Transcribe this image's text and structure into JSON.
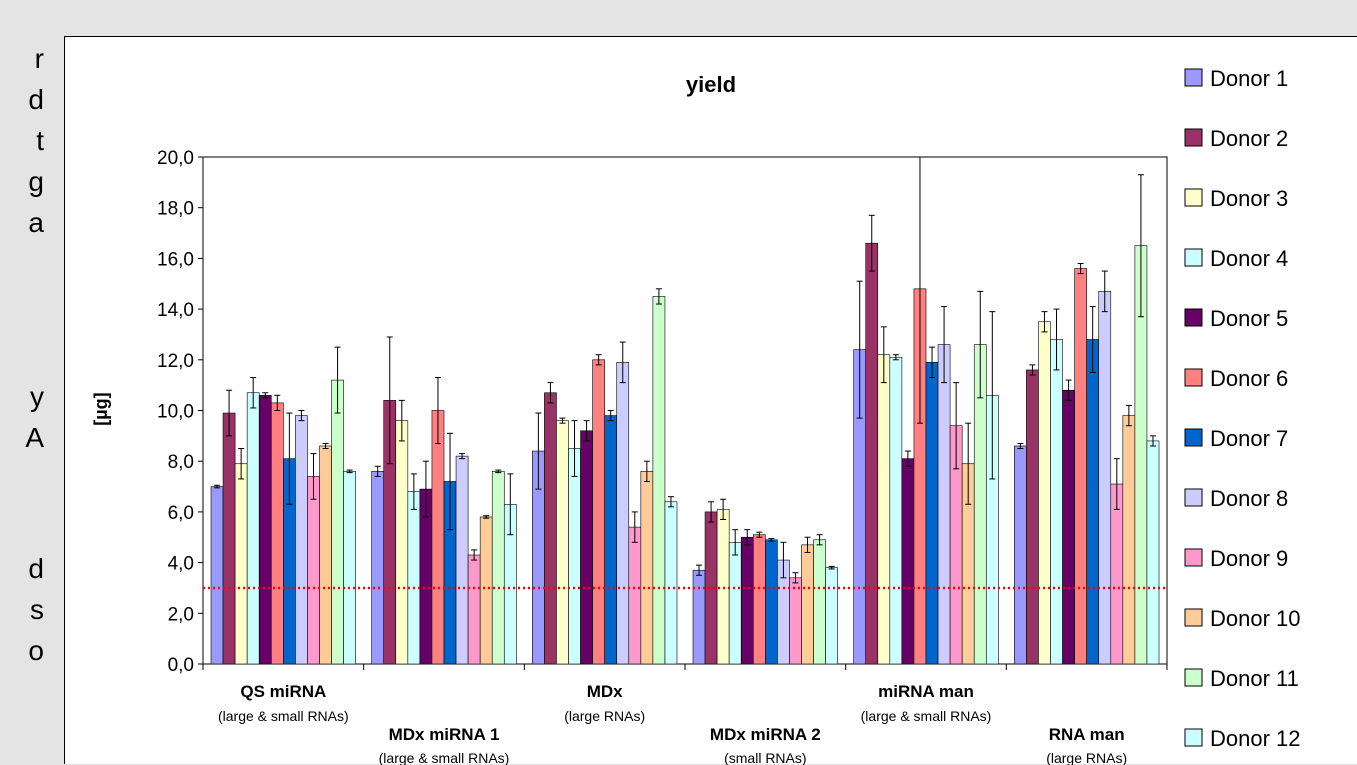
{
  "left_fragments": [
    "r",
    "d",
    "t",
    "g",
    "a",
    "y",
    "A",
    "d",
    "s",
    "o"
  ],
  "chart_data": {
    "type": "bar",
    "title": "yield",
    "xlabel": "",
    "ylabel": "[µg]",
    "ylim": [
      0,
      20
    ],
    "ytick_labels": [
      "0,0",
      "2,0",
      "4,0",
      "6,0",
      "8,0",
      "10,0",
      "12,0",
      "14,0",
      "16,0",
      "18,0",
      "20,0"
    ],
    "reference_line": 3.0,
    "legend_position": "right",
    "groups": [
      {
        "name": "QS miRNA",
        "sub": "(large & small RNAs)"
      },
      {
        "name": "MDx miRNA 1",
        "sub": "(large & small RNAs)"
      },
      {
        "name": "MDx",
        "sub": "(large RNAs)"
      },
      {
        "name": "MDx miRNA 2",
        "sub": "(small RNAs)"
      },
      {
        "name": "miRNA man",
        "sub": "(large & small RNAs)"
      },
      {
        "name": "RNA man",
        "sub": "(large RNAs)"
      }
    ],
    "series": [
      {
        "name": "Donor 1",
        "color": "#9999ff",
        "values": [
          7.0,
          7.6,
          8.4,
          3.7,
          12.4,
          8.6
        ],
        "errors": [
          0.05,
          0.2,
          1.5,
          0.2,
          2.7,
          0.1
        ]
      },
      {
        "name": "Donor 2",
        "color": "#993366",
        "values": [
          9.9,
          10.4,
          10.7,
          6.0,
          16.6,
          11.6
        ],
        "errors": [
          0.9,
          2.5,
          0.4,
          0.4,
          1.1,
          0.2
        ]
      },
      {
        "name": "Donor 3",
        "color": "#ffffcc",
        "values": [
          7.9,
          9.6,
          9.6,
          6.1,
          12.2,
          13.5
        ],
        "errors": [
          0.6,
          0.8,
          0.1,
          0.4,
          1.1,
          0.4
        ]
      },
      {
        "name": "Donor 4",
        "color": "#ccffff",
        "values": [
          10.7,
          6.8,
          8.5,
          4.8,
          12.1,
          12.8
        ],
        "errors": [
          0.6,
          0.7,
          1.1,
          0.5,
          0.1,
          1.2
        ]
      },
      {
        "name": "Donor 5",
        "color": "#660066",
        "values": [
          10.6,
          6.9,
          9.2,
          5.0,
          8.1,
          10.8
        ],
        "errors": [
          0.1,
          1.1,
          0.4,
          0.3,
          0.3,
          0.4
        ]
      },
      {
        "name": "Donor 6",
        "color": "#ff8080",
        "values": [
          10.3,
          10.0,
          12.0,
          5.1,
          14.8,
          15.6
        ],
        "errors": [
          0.3,
          1.3,
          0.2,
          0.1,
          5.3,
          0.2
        ]
      },
      {
        "name": "Donor 7",
        "color": "#0066cc",
        "values": [
          8.1,
          7.2,
          9.8,
          4.9,
          11.9,
          12.8
        ],
        "errors": [
          1.8,
          1.9,
          0.2,
          0.05,
          0.6,
          1.3
        ]
      },
      {
        "name": "Donor 8",
        "color": "#ccccff",
        "values": [
          9.8,
          8.2,
          11.9,
          4.1,
          12.6,
          14.7
        ],
        "errors": [
          0.2,
          0.1,
          0.8,
          0.7,
          1.5,
          0.8
        ]
      },
      {
        "name": "Donor 9",
        "color": "#ff99cc",
        "values": [
          7.4,
          4.3,
          5.4,
          3.4,
          9.4,
          7.1
        ],
        "errors": [
          0.9,
          0.2,
          0.6,
          0.2,
          1.7,
          1.0
        ]
      },
      {
        "name": "Donor 10",
        "color": "#ffcc99",
        "values": [
          8.6,
          5.8,
          7.6,
          4.7,
          7.9,
          9.8
        ],
        "errors": [
          0.1,
          0.05,
          0.4,
          0.3,
          1.6,
          0.4
        ]
      },
      {
        "name": "Donor 11",
        "color": "#ccffcc",
        "values": [
          11.2,
          7.6,
          14.5,
          4.9,
          12.6,
          16.5
        ],
        "errors": [
          1.3,
          0.05,
          0.3,
          0.2,
          2.1,
          2.8
        ]
      },
      {
        "name": "Donor 12",
        "color": "#ccffff",
        "values": [
          7.6,
          6.3,
          6.4,
          3.8,
          10.6,
          8.8
        ],
        "errors": [
          0.05,
          1.2,
          0.2,
          0.05,
          3.3,
          0.2
        ]
      }
    ]
  }
}
